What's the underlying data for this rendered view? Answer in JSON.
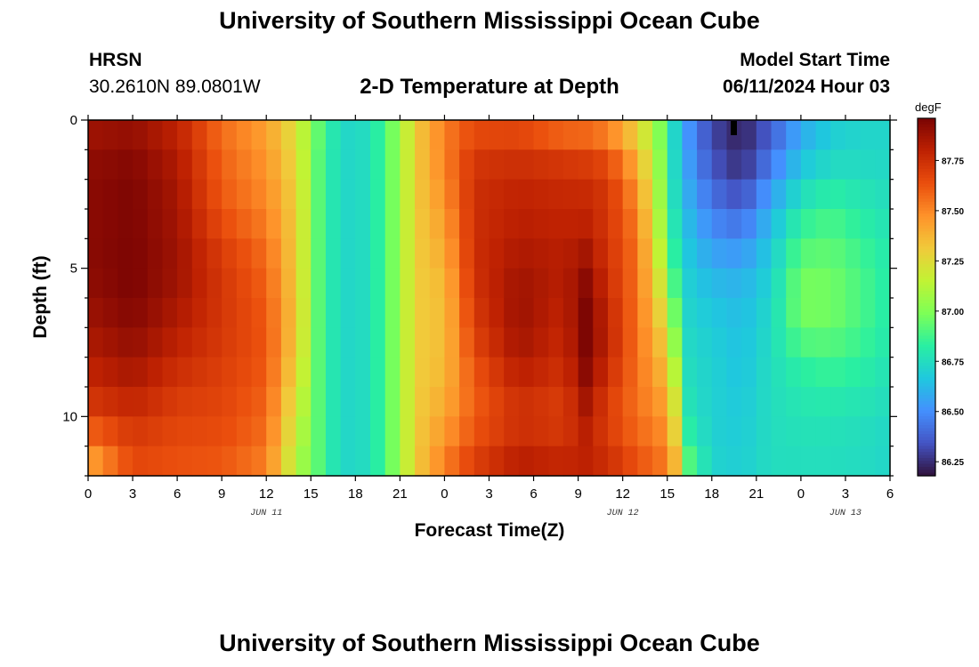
{
  "header": {
    "title": "University of Southern Mississippi Ocean Cube",
    "station": "HRSN",
    "coords": "30.2610N  89.0801W",
    "subtitle": "2-D Temperature at Depth",
    "start_label": "Model Start Time",
    "start_value": "06/11/2024 Hour 03"
  },
  "footer": {
    "title": "University of Southern Mississippi Ocean Cube"
  },
  "chart_data": {
    "type": "heatmap",
    "title": "2-D Temperature at Depth",
    "xlabel": "Forecast Time(Z)",
    "ylabel": "Depth (ft)",
    "x_tick_labels": [
      "0",
      "3",
      "6",
      "9",
      "12",
      "15",
      "18",
      "21",
      "0",
      "3",
      "6",
      "9",
      "12",
      "15",
      "18",
      "21",
      "0",
      "3",
      "6"
    ],
    "x_date_labels": [
      "JUN 11",
      "JUN 12",
      "JUN 13"
    ],
    "y_tick_labels": [
      "0",
      "5",
      "10"
    ],
    "xlim_hours": [
      0,
      54
    ],
    "ylim_ft": [
      0,
      12
    ],
    "colorbar": {
      "unit": "degF",
      "tick_labels": [
        "87.75",
        "87.50",
        "87.25",
        "87.00",
        "86.75",
        "86.50",
        "86.25"
      ],
      "range": [
        86.18,
        87.96
      ],
      "colors": [
        "#30123b",
        "#4454c4",
        "#4490fe",
        "#1fc8de",
        "#29efa2",
        "#7dff56",
        "#c1f334",
        "#f1ca3a",
        "#fe922a",
        "#ea4e0d",
        "#be2102",
        "#7a0403"
      ]
    },
    "depths_ft": [
      0,
      1,
      2,
      3,
      4,
      5,
      6,
      7,
      8,
      9,
      10,
      11,
      12
    ],
    "time_profile": [
      {
        "t": 0,
        "v": [
          87.85,
          87.9,
          87.92,
          87.92,
          87.92,
          87.92,
          87.9,
          87.86,
          87.82,
          87.76,
          87.68,
          87.5,
          87.35
        ]
      },
      {
        "t": 3,
        "v": [
          87.88,
          87.92,
          87.95,
          87.95,
          87.95,
          87.96,
          87.95,
          87.92,
          87.88,
          87.82,
          87.75,
          87.68,
          87.65
        ]
      },
      {
        "t": 6,
        "v": [
          87.78,
          87.82,
          87.85,
          87.86,
          87.87,
          87.88,
          87.86,
          87.82,
          87.78,
          87.72,
          87.68,
          87.65,
          87.62
        ]
      },
      {
        "t": 9,
        "v": [
          87.55,
          87.58,
          87.6,
          87.62,
          87.68,
          87.72,
          87.72,
          87.72,
          87.7,
          87.68,
          87.66,
          87.64,
          87.6
        ]
      },
      {
        "t": 12,
        "v": [
          87.42,
          87.45,
          87.48,
          87.5,
          87.55,
          87.58,
          87.6,
          87.62,
          87.62,
          87.6,
          87.58,
          87.55,
          87.5
        ]
      },
      {
        "t": 14,
        "v": [
          87.22,
          87.25,
          87.28,
          87.3,
          87.3,
          87.3,
          87.32,
          87.32,
          87.3,
          87.25,
          87.2,
          87.15,
          87.1
        ]
      },
      {
        "t": 15.5,
        "v": [
          86.95,
          86.92,
          86.92,
          86.92,
          86.92,
          86.92,
          86.92,
          86.92,
          86.92,
          86.92,
          86.92,
          86.92,
          86.92
        ]
      },
      {
        "t": 17,
        "v": [
          86.72,
          86.72,
          86.72,
          86.72,
          86.72,
          86.72,
          86.72,
          86.72,
          86.72,
          86.72,
          86.72,
          86.72,
          86.72
        ]
      },
      {
        "t": 19,
        "v": [
          86.75,
          86.75,
          86.75,
          86.75,
          86.75,
          86.75,
          86.75,
          86.75,
          86.75,
          86.75,
          86.75,
          86.75,
          86.75
        ]
      },
      {
        "t": 21,
        "v": [
          87.05,
          87.05,
          87.05,
          87.05,
          87.05,
          87.05,
          87.05,
          87.05,
          87.05,
          87.05,
          87.05,
          87.05,
          87.05
        ]
      },
      {
        "t": 22,
        "v": [
          87.3,
          87.3,
          87.3,
          87.3,
          87.3,
          87.3,
          87.3,
          87.3,
          87.3,
          87.3,
          87.3,
          87.3,
          87.3
        ]
      },
      {
        "t": 24,
        "v": [
          87.52,
          87.52,
          87.5,
          87.45,
          87.42,
          87.38,
          87.35,
          87.35,
          87.35,
          87.38,
          87.42,
          87.48,
          87.55
        ]
      },
      {
        "t": 26,
        "v": [
          87.62,
          87.7,
          87.75,
          87.75,
          87.75,
          87.75,
          87.72,
          87.7,
          87.65,
          87.6,
          87.6,
          87.65,
          87.72
        ]
      },
      {
        "t": 29,
        "v": [
          87.62,
          87.72,
          87.78,
          87.8,
          87.82,
          87.86,
          87.88,
          87.88,
          87.84,
          87.78,
          87.72,
          87.78,
          87.84
        ]
      },
      {
        "t": 32,
        "v": [
          87.5,
          87.68,
          87.76,
          87.78,
          87.8,
          87.82,
          87.8,
          87.78,
          87.76,
          87.72,
          87.68,
          87.75,
          87.8
        ]
      },
      {
        "t": 33.5,
        "v": [
          87.5,
          87.66,
          87.75,
          87.78,
          87.82,
          87.9,
          87.94,
          87.96,
          87.94,
          87.9,
          87.82,
          87.8,
          87.8
        ]
      },
      {
        "t": 35,
        "v": [
          87.45,
          87.6,
          87.72,
          87.72,
          87.72,
          87.74,
          87.76,
          87.8,
          87.78,
          87.72,
          87.68,
          87.72,
          87.78
        ]
      },
      {
        "t": 37,
        "v": [
          87.25,
          87.35,
          87.45,
          87.5,
          87.55,
          87.55,
          87.55,
          87.55,
          87.55,
          87.55,
          87.55,
          87.6,
          87.65
        ]
      },
      {
        "t": 38.5,
        "v": [
          86.98,
          87.02,
          87.05,
          87.08,
          87.12,
          87.18,
          87.25,
          87.32,
          87.38,
          87.42,
          87.48,
          87.52,
          87.58
        ]
      },
      {
        "t": 39.5,
        "v": [
          86.72,
          86.72,
          86.74,
          86.76,
          86.8,
          86.85,
          86.92,
          87.0,
          87.08,
          87.18,
          87.25,
          87.32,
          87.42
        ]
      },
      {
        "t": 40.5,
        "v": [
          86.5,
          86.52,
          86.55,
          86.6,
          86.64,
          86.68,
          86.7,
          86.72,
          86.74,
          86.76,
          86.78,
          86.85,
          86.95
        ]
      },
      {
        "t": 42,
        "v": [
          86.3,
          86.32,
          86.38,
          86.45,
          86.52,
          86.6,
          86.65,
          86.68,
          86.7,
          86.7,
          86.7,
          86.7,
          86.72
        ]
      },
      {
        "t": 44,
        "v": [
          86.22,
          86.22,
          86.28,
          86.38,
          86.48,
          86.58,
          86.62,
          86.64,
          86.65,
          86.66,
          86.68,
          86.68,
          86.7
        ]
      },
      {
        "t": 46,
        "v": [
          86.35,
          86.4,
          86.5,
          86.6,
          86.66,
          86.7,
          86.72,
          86.74,
          86.75,
          86.75,
          86.75,
          86.75,
          86.75
        ]
      },
      {
        "t": 48,
        "v": [
          86.55,
          86.62,
          86.7,
          86.8,
          86.88,
          86.95,
          87.0,
          86.95,
          86.85,
          86.8,
          86.78,
          86.76,
          86.75
        ]
      },
      {
        "t": 50,
        "v": [
          86.68,
          86.7,
          86.78,
          86.86,
          86.92,
          86.95,
          86.98,
          86.95,
          86.88,
          86.82,
          86.78,
          86.76,
          86.75
        ]
      },
      {
        "t": 52,
        "v": [
          86.72,
          86.72,
          86.76,
          86.8,
          86.85,
          86.88,
          86.9,
          86.88,
          86.84,
          86.8,
          86.76,
          86.75,
          86.74
        ]
      },
      {
        "t": 54,
        "v": [
          86.72,
          86.72,
          86.74,
          86.76,
          86.78,
          86.8,
          86.8,
          86.8,
          86.78,
          86.76,
          86.74,
          86.72,
          86.72
        ]
      }
    ]
  }
}
